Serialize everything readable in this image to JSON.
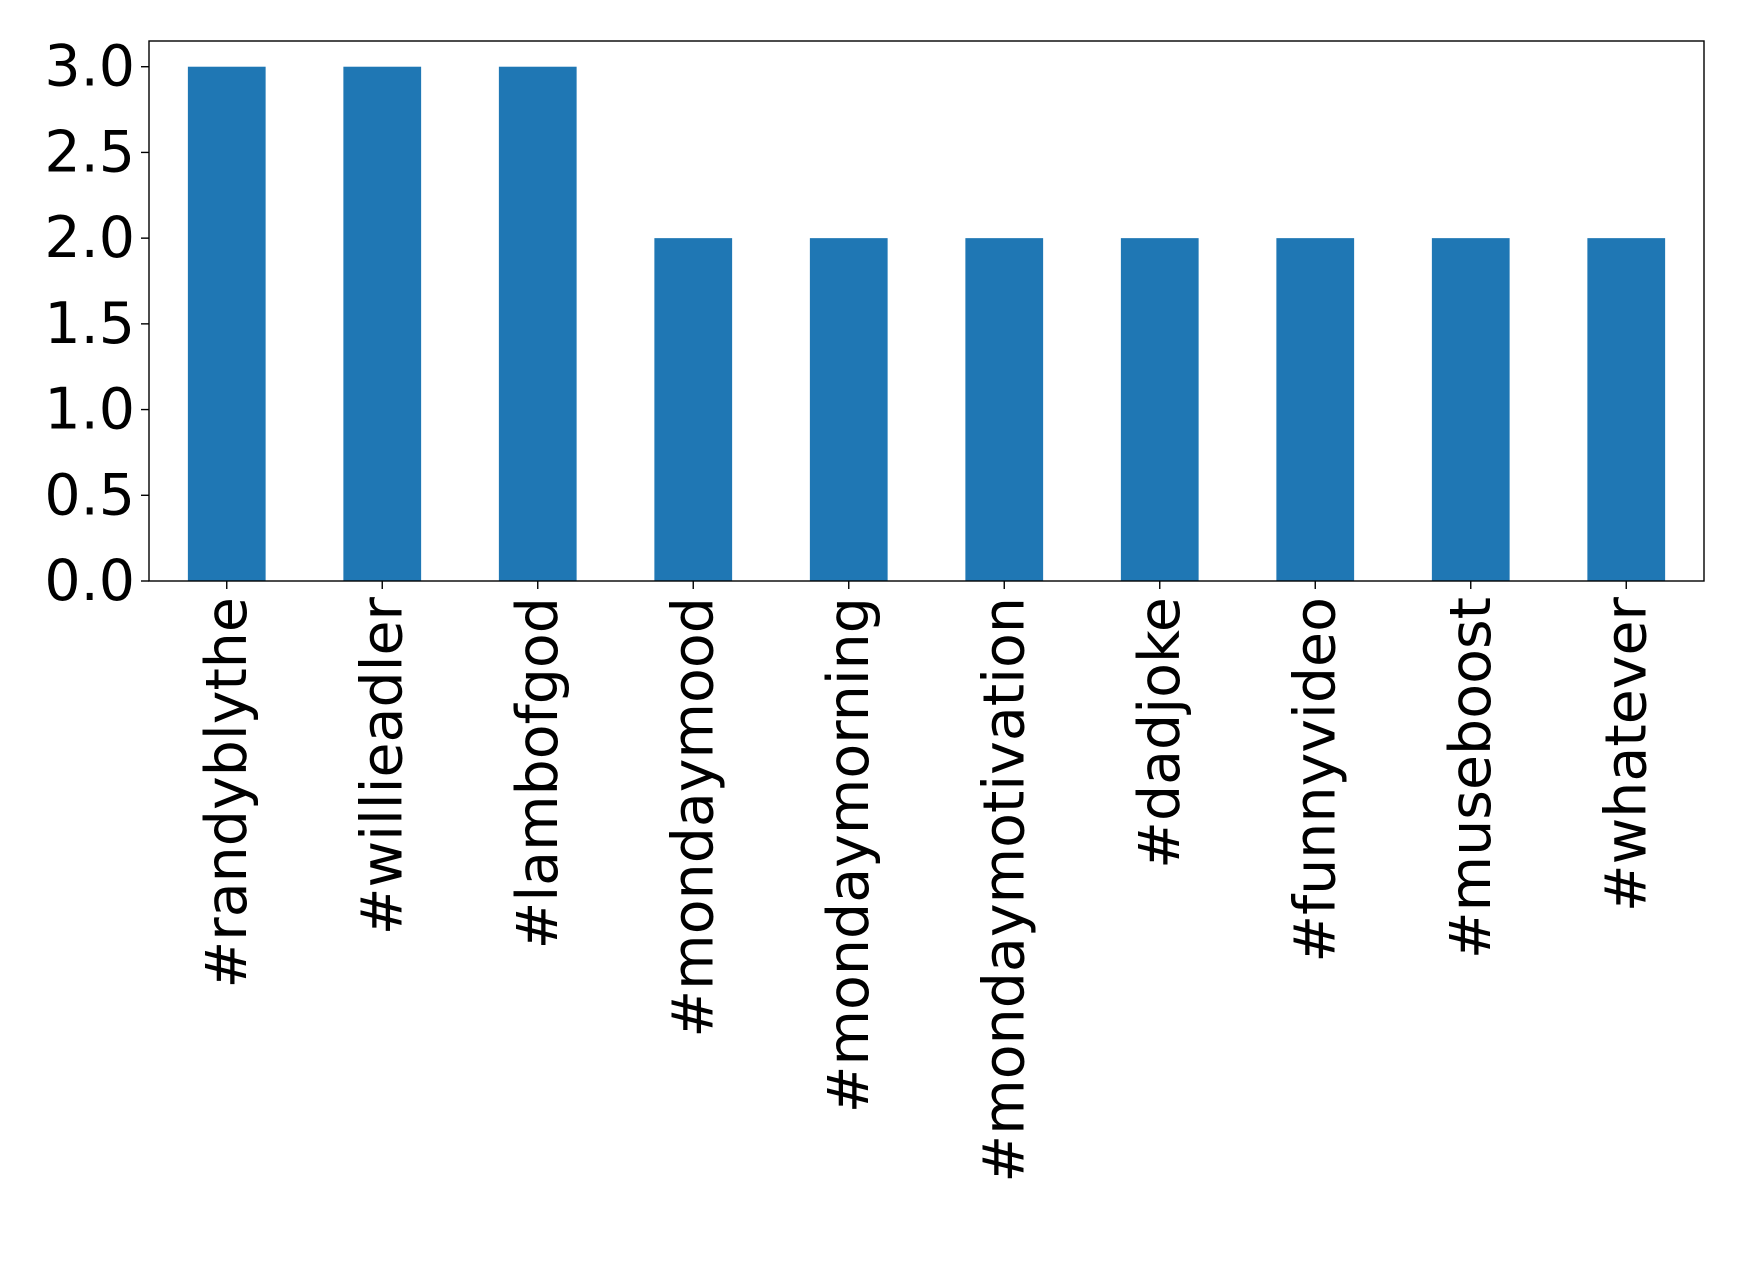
{
  "chart_data": {
    "type": "bar",
    "title": "",
    "xlabel": "",
    "ylabel": "",
    "categories": [
      "#randyblythe",
      "#willieadler",
      "#lambofgod",
      "#mondaymood",
      "#mondaymorning",
      "#mondaymotivation",
      "#dadjoke",
      "#funnyvideo",
      "#museboost",
      "#whatever"
    ],
    "values": [
      3,
      3,
      3,
      2,
      2,
      2,
      2,
      2,
      2,
      2
    ],
    "ylim": [
      0,
      3.15
    ],
    "yticks": [
      "0.0",
      "0.5",
      "1.0",
      "1.5",
      "2.0",
      "2.5",
      "3.0"
    ],
    "bar_color": "#1f77b4",
    "grid": false,
    "legend": "none"
  }
}
